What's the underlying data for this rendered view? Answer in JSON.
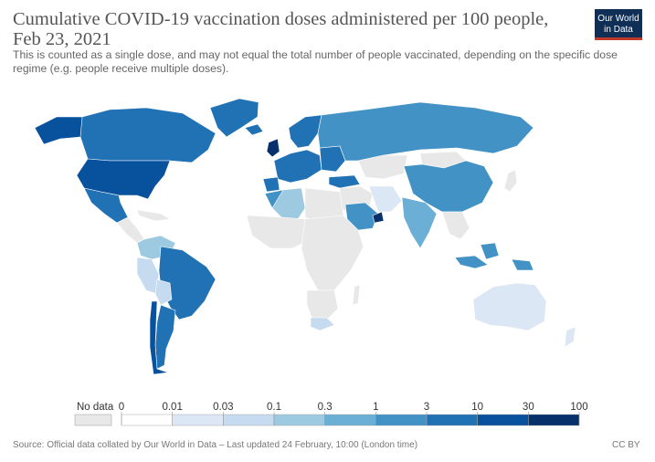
{
  "header": {
    "title": "Cumulative COVID-19 vaccination doses administered per 100 people, Feb 23, 2021",
    "subtitle": "This is counted as a single dose, and may not equal the total number of people vaccinated, depending on the specific dose regime (e.g. people receive multiple doses).",
    "logo_line1": "Our World",
    "logo_line2": "in Data"
  },
  "legend": {
    "no_data_label": "No data",
    "tick_labels": [
      "0",
      "0.01",
      "0.03",
      "0.1",
      "0.3",
      "1",
      "3",
      "10",
      "30",
      "100"
    ],
    "colors": [
      "#ffffff",
      "#dbe7f5",
      "#c6dbef",
      "#9ecae1",
      "#6baed6",
      "#4292c6",
      "#2171b5",
      "#08519c",
      "#08306b"
    ],
    "no_data_color": "#e8e8e8"
  },
  "footer": {
    "source": "Source: Official data collated by Our World in Data – Last updated 24 February, 10:00 (London time)",
    "license": "CC BY"
  }
}
